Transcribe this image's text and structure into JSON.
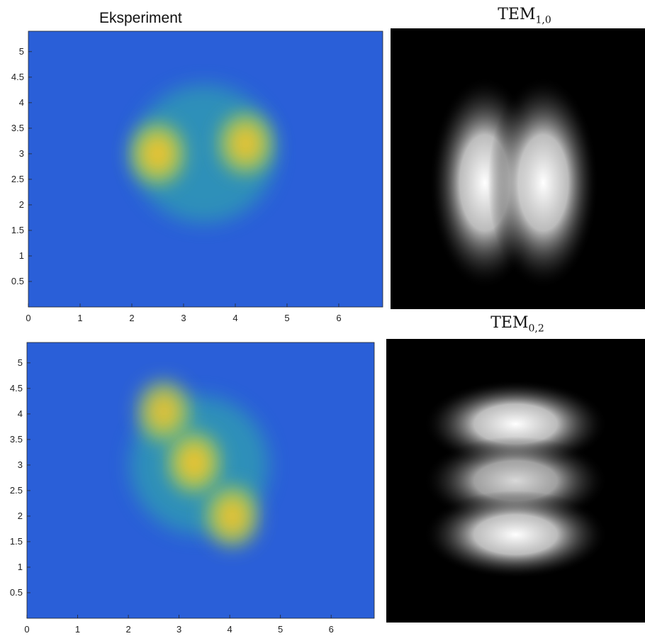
{
  "chart_data": [
    {
      "type": "heatmap",
      "title": "Eksperiment",
      "xlabel": "",
      "ylabel": "",
      "xlim": [
        0,
        6.85
      ],
      "ylim": [
        0,
        5.4
      ],
      "xticks": [
        0,
        1,
        2,
        3,
        4,
        5,
        6
      ],
      "yticks": [
        0.5,
        1,
        1.5,
        2,
        2.5,
        3,
        3.5,
        4,
        4.5,
        5
      ],
      "colormap": "parula",
      "colors": {
        "low": "#2a5fd8",
        "mid": "#30b8a0",
        "high": "#f5c22a"
      },
      "blobs": [
        {
          "x": 2.5,
          "y": 3.0,
          "intensity": 1.0
        },
        {
          "x": 4.2,
          "y": 3.2,
          "intensity": 0.95
        }
      ],
      "halo_center": {
        "x": 3.4,
        "y": 3.0
      }
    },
    {
      "type": "heatmap",
      "title": "TEM_{1,0}",
      "title_main": "TEM",
      "title_sub": "1,0",
      "colormap": "gray",
      "lobes": [
        {
          "x": 0.37,
          "y": 0.55,
          "intensity": 1.0
        },
        {
          "x": 0.6,
          "y": 0.55,
          "intensity": 1.0
        }
      ]
    },
    {
      "type": "heatmap",
      "title": "",
      "xlabel": "",
      "ylabel": "",
      "xlim": [
        0,
        6.85
      ],
      "ylim": [
        0,
        5.4
      ],
      "xticks": [
        0,
        1,
        2,
        3,
        4,
        5,
        6
      ],
      "yticks": [
        0.5,
        1,
        1.5,
        2,
        2.5,
        3,
        3.5,
        4,
        4.5,
        5
      ],
      "colormap": "parula",
      "colors": {
        "low": "#2a5fd8",
        "mid": "#30b8a0",
        "high": "#f5c22a"
      },
      "blobs": [
        {
          "x": 2.7,
          "y": 4.05,
          "intensity": 0.9
        },
        {
          "x": 3.3,
          "y": 3.05,
          "intensity": 1.0
        },
        {
          "x": 4.05,
          "y": 2.0,
          "intensity": 0.95
        }
      ],
      "halo_center": {
        "x": 3.4,
        "y": 3.0
      }
    },
    {
      "type": "heatmap",
      "title": "TEM_{0,2}",
      "title_main": "TEM",
      "title_sub": "0,2",
      "colormap": "gray",
      "lobes": [
        {
          "x": 0.5,
          "y": 0.3,
          "intensity": 1.0
        },
        {
          "x": 0.5,
          "y": 0.5,
          "intensity": 0.85
        },
        {
          "x": 0.5,
          "y": 0.69,
          "intensity": 1.0
        }
      ]
    }
  ]
}
